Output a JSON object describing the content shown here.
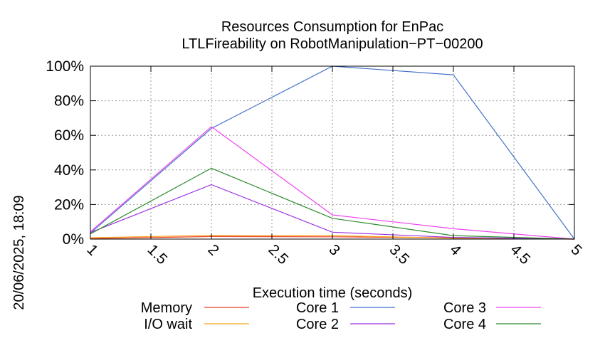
{
  "chart_data": {
    "type": "line",
    "title": "Resources Consumption for EnPac",
    "subtitle": "LTLFireability on RobotManipulation−PT−00200",
    "xlabel": "Execution time (seconds)",
    "ylabel": "",
    "side_label": "20/06/2025, 18:09",
    "xlim": [
      1,
      5
    ],
    "ylim": [
      0,
      100
    ],
    "x_ticks": [
      "1",
      "1.5",
      "2",
      "2.5",
      "3",
      "3.5",
      "4",
      "4.5",
      "5"
    ],
    "y_ticks": [
      "0%",
      "20%",
      "40%",
      "60%",
      "80%",
      "100%"
    ],
    "grid": true,
    "legend_position": "bottom",
    "series": [
      {
        "name": "Memory",
        "color": "#e8402a",
        "x": [
          1,
          2,
          3,
          4,
          5
        ],
        "values": [
          0.3,
          1.5,
          1.3,
          0.8,
          0
        ]
      },
      {
        "name": "I/O wait",
        "color": "#f7a21b",
        "x": [
          1,
          2,
          3,
          4,
          5
        ],
        "values": [
          0.8,
          2.2,
          2.0,
          0.5,
          0
        ]
      },
      {
        "name": "Core 1",
        "color": "#4470c9",
        "x": [
          1,
          2,
          3,
          4,
          5
        ],
        "values": [
          3.5,
          64,
          100,
          95,
          0
        ]
      },
      {
        "name": "Core 2",
        "color": "#9b32e0",
        "x": [
          1,
          2,
          3,
          4,
          5
        ],
        "values": [
          3.8,
          31.5,
          4,
          1,
          0
        ]
      },
      {
        "name": "Core 3",
        "color": "#ee44ee",
        "x": [
          1,
          2,
          3,
          4,
          5
        ],
        "values": [
          4.2,
          65,
          14,
          6,
          0
        ]
      },
      {
        "name": "Core 4",
        "color": "#2e8b2e",
        "x": [
          1,
          2,
          3,
          4,
          5
        ],
        "values": [
          3.0,
          41,
          12,
          2,
          0
        ]
      }
    ]
  }
}
